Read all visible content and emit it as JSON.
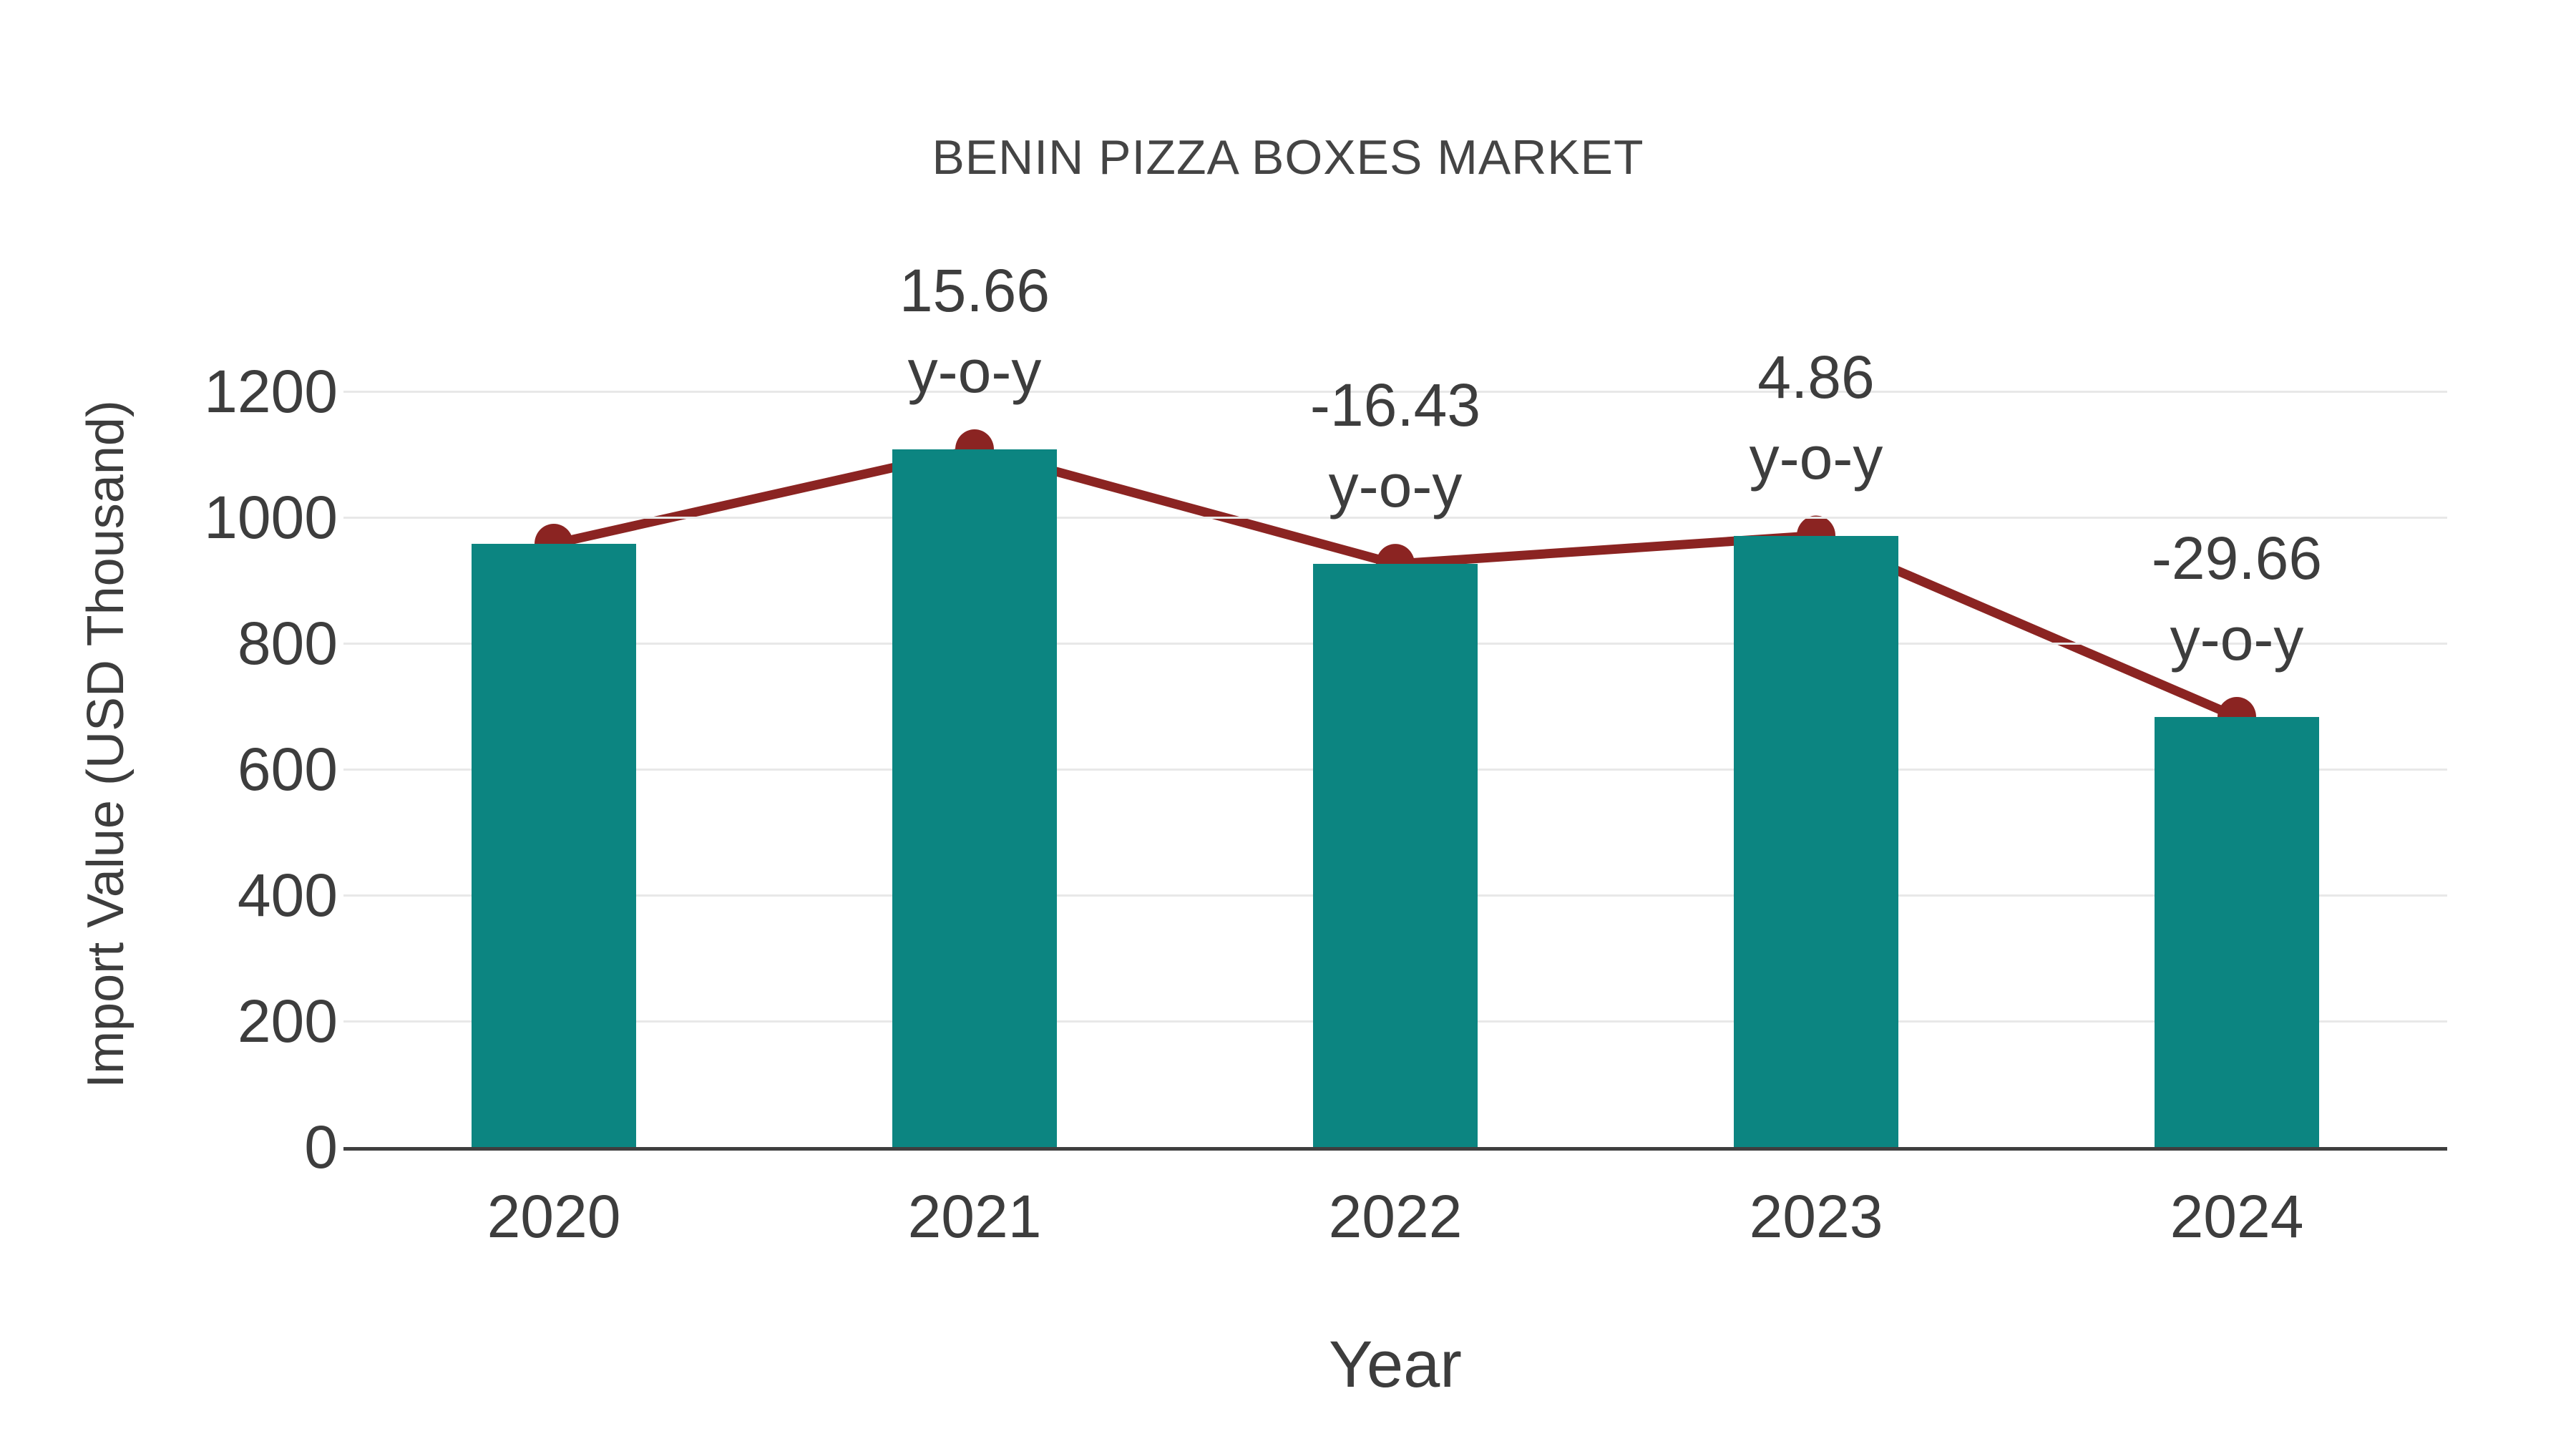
{
  "chart_data": {
    "type": "bar",
    "title": "BENIN PIZZA BOXES MARKET",
    "xlabel": "Year",
    "ylabel": "Import Value (USD Thousand)",
    "categories": [
      "2020",
      "2021",
      "2022",
      "2023",
      "2024"
    ],
    "series": [
      {
        "name": "import-value-bars",
        "type": "bar",
        "values": [
          958,
          1108,
          926,
          971,
          683
        ]
      },
      {
        "name": "import-value-trend-line",
        "type": "line",
        "values": [
          958,
          1108,
          926,
          971,
          683
        ]
      }
    ],
    "annotations": [
      {
        "category": "2021",
        "value": 15.66,
        "label": "15.66",
        "sub": "y-o-y"
      },
      {
        "category": "2022",
        "value": -16.43,
        "label": "-16.43",
        "sub": "y-o-y"
      },
      {
        "category": "2023",
        "value": 4.86,
        "label": "4.86",
        "sub": "y-o-y"
      },
      {
        "category": "2024",
        "value": -29.66,
        "label": "-29.66",
        "sub": "y-o-y"
      }
    ],
    "yticks": [
      0,
      200,
      400,
      600,
      800,
      1000,
      1200
    ],
    "ylim": [
      0,
      1250
    ],
    "grid": true,
    "legend": false,
    "colors": {
      "bar": "#0c8581",
      "line": "#8b2422",
      "marker": "#8b2422",
      "grid": "#e8e8e8",
      "axis": "#3f3f3f",
      "text": "#3d3d3d"
    }
  }
}
